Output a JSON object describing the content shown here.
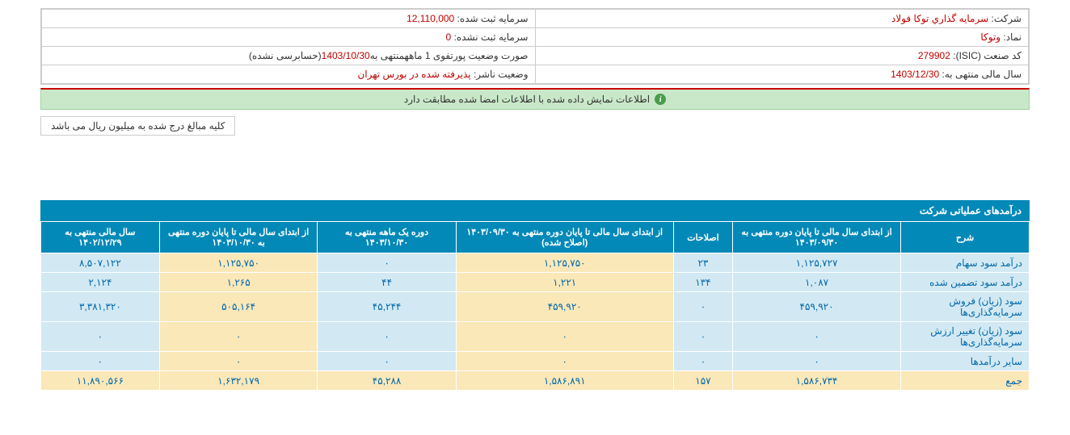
{
  "info": {
    "company_label": "شرکت:",
    "company_value": "سرمايه گذاري توکا فولاد",
    "capital_reg_label": "سرمایه ثبت شده:",
    "capital_reg_value": "12,110,000",
    "symbol_label": "نماد:",
    "symbol_value": "وتوکا",
    "capital_unreg_label": "سرمایه ثبت نشده:",
    "capital_unreg_value": "0",
    "isic_label": "کد صنعت (ISIC):",
    "isic_value": "279902",
    "report_label": "صورت وضعیت پورتفوی 1 ماهه",
    "report_mid": "منتهی به",
    "report_date": "1403/10/30",
    "report_suffix": "(حسابرسی نشده)",
    "fiscal_label": "سال مالی منتهی به:",
    "fiscal_value": "1403/12/30",
    "publisher_label": "وضعیت ناشر:",
    "publisher_value": "پذيرفته شده در بورس تهران"
  },
  "banner": "اطلاعات نمایش داده شده با اطلاعات امضا شده مطابقت دارد",
  "note": "کلیه مبالغ درج شده به میلیون ریال می باشد",
  "section_title": "درآمدهای عملیاتی شرکت",
  "columns": [
    "شرح",
    "از ابتدای سال مالی تا پایان دوره منتهی به ۱۴۰۳/۰۹/۳۰",
    "اصلاحات",
    "از ابتدای سال مالی تا پایان دوره منتهی به ۱۴۰۳/۰۹/۳۰ (اصلاح شده)",
    "دوره یک ماهه منتهی به ۱۴۰۳/۱۰/۳۰",
    "از ابتدای سال مالی تا پایان دوره منتهی به ۱۴۰۳/۱۰/۳۰",
    "سال مالی منتهی به ۱۴۰۲/۱۲/۲۹"
  ],
  "col_widths": [
    "13%",
    "17%",
    "6%",
    "22%",
    "14%",
    "16%",
    "12%"
  ],
  "rows": [
    {
      "label": "درآمد سود سهام",
      "cells": [
        "۱,۱۲۵,۷۲۷",
        "۲۳",
        "۱,۱۲۵,۷۵۰",
        "۰",
        "۱,۱۲۵,۷۵۰",
        "۸,۵۰۷,۱۲۲"
      ],
      "colors": [
        "c-blue",
        "c-blue",
        "c-cream",
        "c-blue",
        "c-cream",
        "c-blue"
      ],
      "label_color": "c-blue"
    },
    {
      "label": "درآمد سود تضمین شده",
      "cells": [
        "۱,۰۸۷",
        "۱۳۴",
        "۱,۲۲۱",
        "۴۴",
        "۱,۲۶۵",
        "۲,۱۲۴"
      ],
      "colors": [
        "c-blue",
        "c-blue",
        "c-cream",
        "c-blue",
        "c-cream",
        "c-blue"
      ],
      "label_color": "c-blue"
    },
    {
      "label": "سود (زیان) فروش سرمایه‌گذاری‌ها",
      "cells": [
        "۴۵۹,۹۲۰",
        "۰",
        "۴۵۹,۹۲۰",
        "۴۵,۲۴۴",
        "۵۰۵,۱۶۴",
        "۳,۳۸۱,۳۲۰"
      ],
      "colors": [
        "c-blue",
        "c-blue",
        "c-cream",
        "c-blue",
        "c-cream",
        "c-blue"
      ],
      "label_color": "c-blue"
    },
    {
      "label": "سود (زیان) تغییر ارزش سرمایه‌گذاری‌ها",
      "cells": [
        "۰",
        "۰",
        "۰",
        "۰",
        "۰",
        "۰"
      ],
      "colors": [
        "c-blue",
        "c-blue",
        "c-cream",
        "c-blue",
        "c-cream",
        "c-blue"
      ],
      "label_color": "c-blue"
    },
    {
      "label": "سایر درآمدها",
      "cells": [
        "۰",
        "۰",
        "۰",
        "۰",
        "۰",
        "۰"
      ],
      "colors": [
        "c-blue",
        "c-blue",
        "c-cream",
        "c-blue",
        "c-cream",
        "c-blue"
      ],
      "label_color": "c-blue"
    },
    {
      "label": "جمع",
      "cells": [
        "۱,۵۸۶,۷۳۴",
        "۱۵۷",
        "۱,۵۸۶,۸۹۱",
        "۴۵,۲۸۸",
        "۱,۶۳۲,۱۷۹",
        "۱۱,۸۹۰,۵۶۶"
      ],
      "colors": [
        "c-cream",
        "c-cream",
        "c-cream",
        "c-cream",
        "c-cream",
        "c-cream"
      ],
      "label_color": "c-cream"
    }
  ]
}
